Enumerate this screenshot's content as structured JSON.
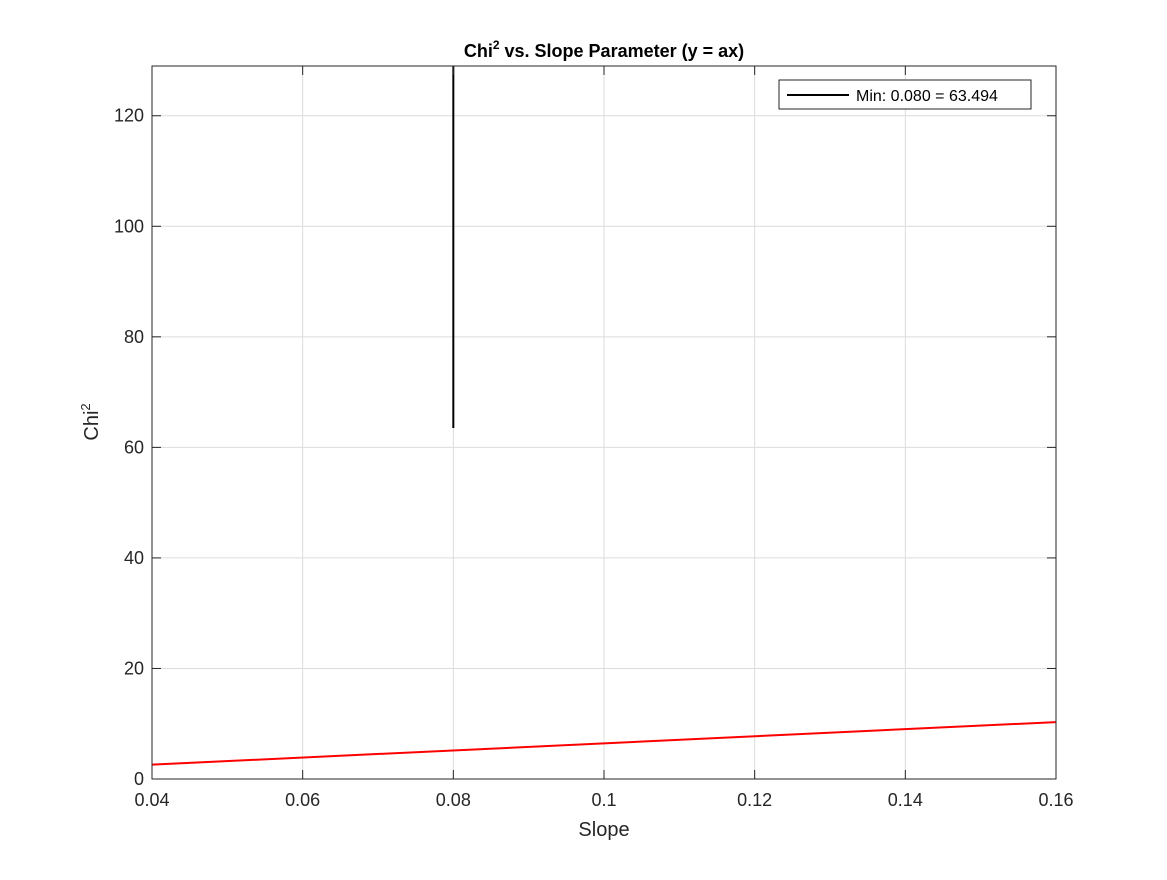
{
  "chart_data": {
    "type": "line",
    "title_main": "Chi",
    "title_sup": "2",
    "title_rest": " vs. Slope Parameter (y = ax)",
    "xlabel": "Slope",
    "ylabel_main": "Chi",
    "ylabel_sup": "2",
    "xlim": [
      0.04,
      0.16
    ],
    "ylim": [
      0,
      129
    ],
    "xticks": [
      0.04,
      0.06,
      0.08,
      0.1,
      0.12,
      0.14,
      0.16
    ],
    "xtick_labels": [
      "0.04",
      "0.06",
      "0.08",
      "0.1",
      "0.12",
      "0.14",
      "0.16"
    ],
    "yticks": [
      0,
      20,
      40,
      60,
      80,
      100,
      120
    ],
    "ytick_labels": [
      "0",
      "20",
      "40",
      "60",
      "80",
      "100",
      "120"
    ],
    "grid": true,
    "legend_position": "top-right",
    "series": [
      {
        "name": "",
        "color": "#ff0000",
        "x": [
          0.04,
          0.16
        ],
        "y": [
          2.6,
          10.3
        ]
      },
      {
        "name": "Min: 0.080 = 63.494",
        "color": "#000000",
        "x": [
          0.08,
          0.08
        ],
        "y": [
          63.494,
          129
        ]
      }
    ]
  }
}
